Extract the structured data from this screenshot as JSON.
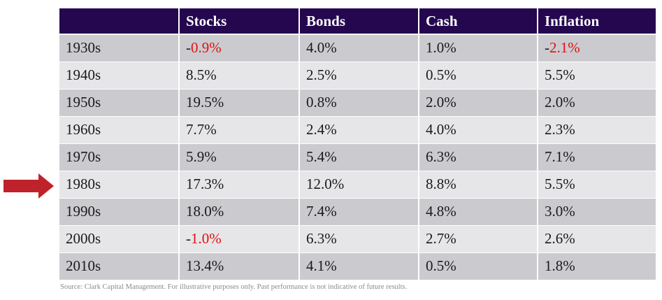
{
  "table": {
    "headers": [
      "",
      "Stocks",
      "Bonds",
      "Cash",
      "Inflation"
    ],
    "rows": [
      [
        "1930s",
        "-0.9%",
        "4.0%",
        "1.0%",
        "-2.1%"
      ],
      [
        "1940s",
        "8.5%",
        "2.5%",
        "0.5%",
        "5.5%"
      ],
      [
        "1950s",
        "19.5%",
        "0.8%",
        "2.0%",
        "2.0%"
      ],
      [
        "1960s",
        "7.7%",
        "2.4%",
        "4.0%",
        "2.3%"
      ],
      [
        "1970s",
        "5.9%",
        "5.4%",
        "6.3%",
        "7.1%"
      ],
      [
        "1980s",
        "17.3%",
        "12.0%",
        "8.8%",
        "5.5%"
      ],
      [
        "1990s",
        "18.0%",
        "7.4%",
        "4.8%",
        "3.0%"
      ],
      [
        "2000s",
        "-1.0%",
        "6.3%",
        "2.7%",
        "2.6%"
      ],
      [
        "2010s",
        "13.4%",
        "4.1%",
        "0.5%",
        "1.8%"
      ]
    ]
  },
  "highlight": {
    "row_label": "1980s",
    "icon": "right-arrow-icon"
  },
  "colors": {
    "header_bg": "#24074f",
    "header_text": "#ffffff",
    "row_dark": "#cbcbcf",
    "row_light": "#e6e6e8",
    "negative_value": "#e01010",
    "arrow": "#c0222b"
  },
  "footer": {
    "source": "Source: Clark Capital Management.  For illustrative  purposes only. Past performance is not indicative  of future results."
  }
}
